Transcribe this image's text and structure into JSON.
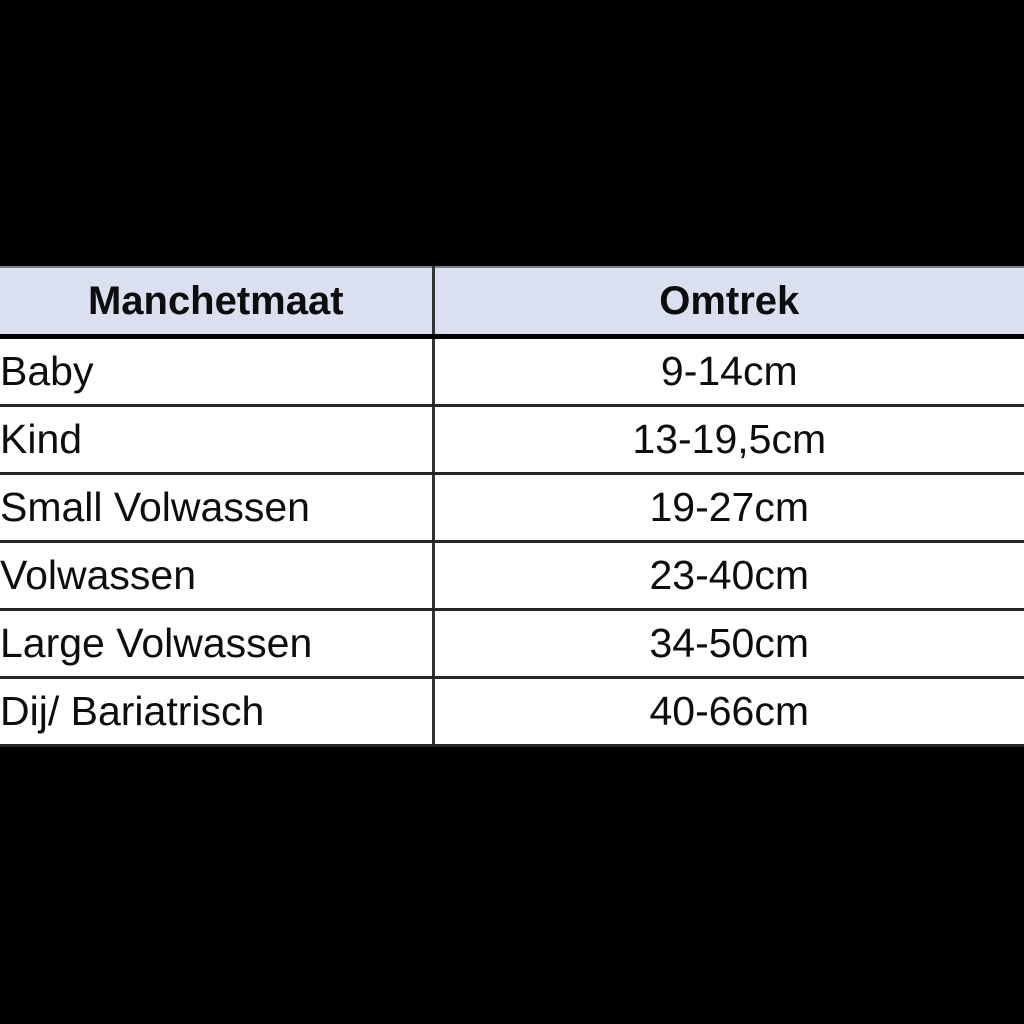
{
  "page": {
    "background_color": "#000000"
  },
  "chart_data": {
    "type": "table",
    "title": "",
    "columns": [
      "Manchetmaat",
      "Omtrek"
    ],
    "rows": [
      [
        "Baby",
        "9-14cm"
      ],
      [
        "Kind",
        "13-19,5cm"
      ],
      [
        "Small Volwassen",
        "19-27cm"
      ],
      [
        "Volwassen",
        "23-40cm"
      ],
      [
        "Large Volwassen",
        "34-50cm"
      ],
      [
        "Dij/ Bariatrisch",
        "40-66cm"
      ]
    ],
    "layout": {
      "header_text_align": "center",
      "label_column_text_align": "left",
      "value_column_text_align": "center",
      "grid": "horizontal-and-column-divider"
    },
    "colors": {
      "header_background": "#dbe0f1",
      "row_background": "#ffffff",
      "grid_border": "#262626",
      "column_divider": "#333333",
      "header_bottom_border": "#000000",
      "header_top_border": "#7d7d88",
      "text": "#0d0d0d",
      "page_background": "#000000"
    }
  }
}
